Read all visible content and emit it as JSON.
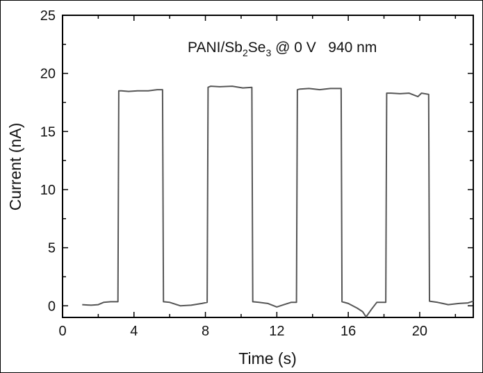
{
  "chart_data": {
    "type": "line",
    "title": "",
    "xlabel": "Time (s)",
    "ylabel": "Current (nA)",
    "xlim": [
      0,
      23
    ],
    "ylim": [
      -1,
      25
    ],
    "xticks": [
      0,
      4,
      8,
      12,
      16,
      20
    ],
    "yticks": [
      0,
      5,
      10,
      15,
      20,
      25
    ],
    "annotation": {
      "part1": "PANI/Sb",
      "sub1": "2",
      "part2": "Se",
      "sub2": "3",
      "part3": " @ 0 V   940 nm"
    },
    "series": [
      {
        "color": "#555555",
        "x": [
          1.1,
          1.6,
          2.0,
          2.3,
          2.7,
          3.1,
          3.15,
          3.3,
          3.7,
          4.2,
          4.8,
          5.3,
          5.6,
          5.65,
          6.0,
          6.6,
          7.2,
          7.8,
          8.1,
          8.15,
          8.3,
          8.8,
          9.5,
          10.1,
          10.6,
          10.65,
          11.0,
          11.5,
          12.0,
          12.4,
          12.8,
          13.1,
          13.15,
          13.3,
          13.8,
          14.4,
          15.0,
          15.6,
          15.65,
          16.0,
          16.5,
          16.8,
          17.0,
          17.3,
          17.6,
          18.1,
          18.15,
          18.4,
          18.9,
          19.4,
          19.9,
          20.1,
          20.5,
          20.55,
          21.0,
          21.6,
          22.2,
          22.7,
          23.0
        ],
        "y": [
          0.1,
          0.05,
          0.1,
          0.3,
          0.35,
          0.35,
          18.5,
          18.5,
          18.45,
          18.5,
          18.5,
          18.6,
          18.6,
          0.35,
          0.3,
          0.0,
          0.05,
          0.2,
          0.3,
          18.8,
          18.9,
          18.85,
          18.9,
          18.75,
          18.8,
          0.35,
          0.3,
          0.2,
          -0.1,
          0.1,
          0.3,
          0.3,
          18.6,
          18.65,
          18.7,
          18.6,
          18.7,
          18.7,
          0.35,
          0.2,
          -0.2,
          -0.5,
          -0.95,
          -0.3,
          0.3,
          0.3,
          18.3,
          18.3,
          18.25,
          18.3,
          18.0,
          18.3,
          18.2,
          0.4,
          0.3,
          0.1,
          0.2,
          0.25,
          0.4
        ]
      }
    ],
    "grid": false,
    "legend": "none"
  }
}
